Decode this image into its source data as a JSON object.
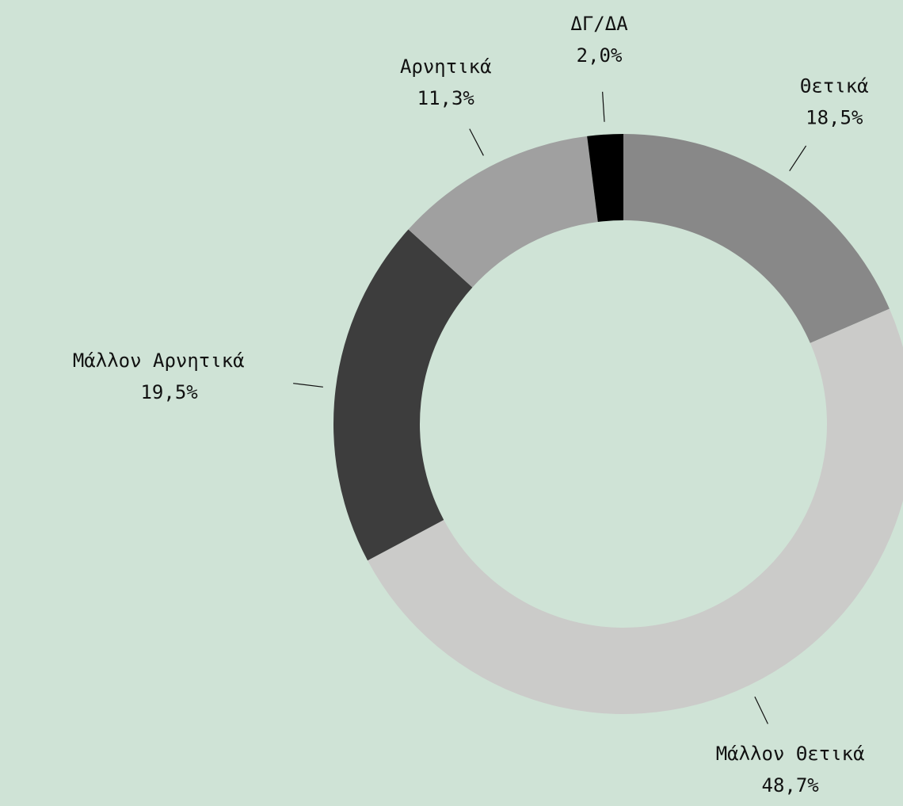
{
  "chart_data": {
    "type": "pie",
    "donut": true,
    "categories": [
      "Θετικά",
      "Μάλλον Θετικά",
      "Μάλλον Αρνητικά",
      "Αρνητικά",
      "ΔΓ/ΔΑ"
    ],
    "values": [
      18.5,
      48.7,
      19.5,
      11.3,
      2.0
    ],
    "value_labels": [
      "18,5%",
      "48,7%",
      "19,5%",
      "11,3%",
      "2,0%"
    ],
    "colors": [
      "#888888",
      "#cbcbc9",
      "#3d3d3d",
      "#a0a0a0",
      "#000000"
    ]
  }
}
